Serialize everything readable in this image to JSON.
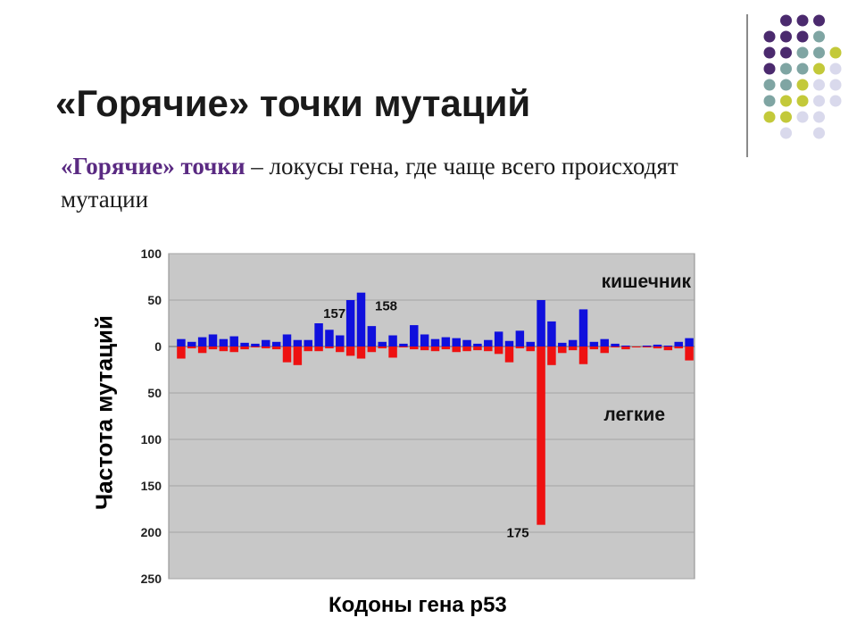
{
  "slide": {
    "title": "«Горячие» точки мутаций",
    "definition_term": "«Горячие» точки",
    "definition_rest": " – локусы гена, где чаще всего происходят мутации"
  },
  "decor": {
    "dot_colors": {
      "purple": "#4b2a6e",
      "teal": "#7fa5a3",
      "olive": "#c3c93a",
      "lavender": "#d9d9ec"
    },
    "divider_color": "#8a8a8a"
  },
  "chart_data": {
    "type": "bar",
    "xlabel": "Кодоны гена р53",
    "ylabel": "Частота мутаций",
    "ylim": [
      -250,
      100
    ],
    "y_ticks": [
      100,
      50,
      0,
      -50,
      -100,
      -150,
      -200,
      -250
    ],
    "y_tick_labels": [
      "100",
      "50",
      "0",
      "50",
      "100",
      "150",
      "200",
      "250"
    ],
    "grid": true,
    "plot_background": "#c8c8c8",
    "bar_count": 49,
    "series": [
      {
        "name": "кишечник",
        "color": "#1010dd",
        "values": [
          8,
          5,
          10,
          13,
          8,
          11,
          4,
          3,
          7,
          5,
          13,
          7,
          7,
          25,
          18,
          12,
          50,
          58,
          22,
          5,
          12,
          3,
          23,
          13,
          8,
          10,
          9,
          7,
          3,
          7,
          16,
          6,
          17,
          5,
          50,
          27,
          4,
          7,
          40,
          5,
          8,
          3,
          1,
          0,
          1,
          2,
          1,
          5,
          9
        ]
      },
      {
        "name": "легкие",
        "color": "#ee1111",
        "values": [
          -13,
          -2,
          -7,
          -3,
          -5,
          -6,
          -3,
          -1,
          -2,
          -3,
          -17,
          -20,
          -5,
          -5,
          -2,
          -6,
          -10,
          -13,
          -6,
          -2,
          -12,
          -1,
          -3,
          -4,
          -5,
          -3,
          -6,
          -5,
          -4,
          -5,
          -8,
          -17,
          -2,
          -5,
          -192,
          -20,
          -7,
          -4,
          -19,
          -3,
          -7,
          -1,
          -3,
          -1,
          -1,
          -2,
          -4,
          -2,
          -15
        ]
      }
    ],
    "annotations": [
      {
        "text": "157",
        "bar_index": 16,
        "anchor": "top"
      },
      {
        "text": "158",
        "bar_index": 17,
        "anchor": "top"
      },
      {
        "text": "175",
        "bar_index": 34,
        "anchor": "bottom"
      }
    ]
  }
}
